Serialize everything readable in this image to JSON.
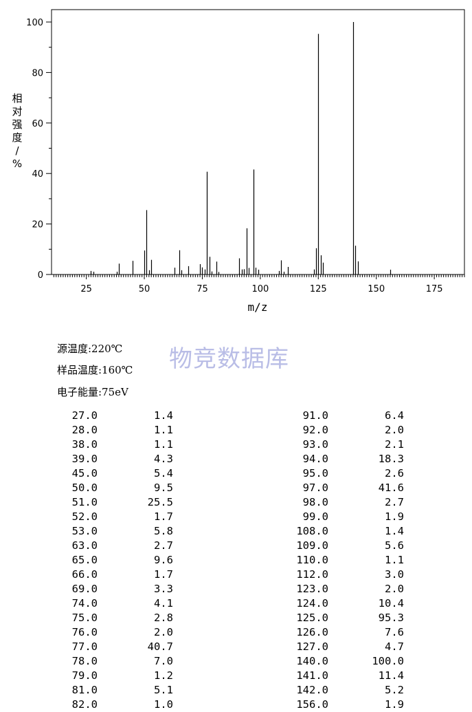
{
  "chart_data": {
    "type": "bar",
    "xlabel": "m/z",
    "ylabel": "相对强度/%",
    "xlim": [
      10,
      188
    ],
    "ylim": [
      0,
      100
    ],
    "x_ticks": [
      "25",
      "50",
      "75",
      "100",
      "125",
      "150",
      "175"
    ],
    "y_ticks": [
      "0",
      "20",
      "40",
      "60",
      "80",
      "100"
    ],
    "points": [
      {
        "x": 27,
        "y": 1.4
      },
      {
        "x": 28,
        "y": 1.1
      },
      {
        "x": 38,
        "y": 1.1
      },
      {
        "x": 39,
        "y": 4.3
      },
      {
        "x": 45,
        "y": 5.4
      },
      {
        "x": 50,
        "y": 9.5
      },
      {
        "x": 51,
        "y": 25.5
      },
      {
        "x": 52,
        "y": 1.7
      },
      {
        "x": 53,
        "y": 5.8
      },
      {
        "x": 63,
        "y": 2.7
      },
      {
        "x": 65,
        "y": 9.6
      },
      {
        "x": 66,
        "y": 1.7
      },
      {
        "x": 69,
        "y": 3.3
      },
      {
        "x": 74,
        "y": 4.1
      },
      {
        "x": 75,
        "y": 2.8
      },
      {
        "x": 76,
        "y": 2.0
      },
      {
        "x": 77,
        "y": 40.7
      },
      {
        "x": 78,
        "y": 7.0
      },
      {
        "x": 79,
        "y": 1.2
      },
      {
        "x": 81,
        "y": 5.1
      },
      {
        "x": 82,
        "y": 1.0
      },
      {
        "x": 91,
        "y": 6.4
      },
      {
        "x": 92,
        "y": 2.0
      },
      {
        "x": 93,
        "y": 2.1
      },
      {
        "x": 94,
        "y": 18.3
      },
      {
        "x": 95,
        "y": 2.6
      },
      {
        "x": 97,
        "y": 41.6
      },
      {
        "x": 98,
        "y": 2.7
      },
      {
        "x": 99,
        "y": 1.9
      },
      {
        "x": 108,
        "y": 1.4
      },
      {
        "x": 109,
        "y": 5.6
      },
      {
        "x": 110,
        "y": 1.1
      },
      {
        "x": 112,
        "y": 3.0
      },
      {
        "x": 123,
        "y": 2.0
      },
      {
        "x": 124,
        "y": 10.4
      },
      {
        "x": 125,
        "y": 95.3
      },
      {
        "x": 126,
        "y": 7.6
      },
      {
        "x": 127,
        "y": 4.7
      },
      {
        "x": 140,
        "y": 100.0
      },
      {
        "x": 141,
        "y": 11.4
      },
      {
        "x": 142,
        "y": 5.2
      },
      {
        "x": 156,
        "y": 1.9
      }
    ]
  },
  "conditions": {
    "source_temp": "源温度:220℃",
    "sample_temp": "样品温度:160℃",
    "electron_energy": "电子能量:75eV"
  },
  "watermark": "物竞数据库",
  "peak_table": {
    "left": [
      [
        "27.0",
        "1.4"
      ],
      [
        "28.0",
        "1.1"
      ],
      [
        "38.0",
        "1.1"
      ],
      [
        "39.0",
        "4.3"
      ],
      [
        "45.0",
        "5.4"
      ],
      [
        "50.0",
        "9.5"
      ],
      [
        "51.0",
        "25.5"
      ],
      [
        "52.0",
        "1.7"
      ],
      [
        "53.0",
        "5.8"
      ],
      [
        "63.0",
        "2.7"
      ],
      [
        "65.0",
        "9.6"
      ],
      [
        "66.0",
        "1.7"
      ],
      [
        "69.0",
        "3.3"
      ],
      [
        "74.0",
        "4.1"
      ],
      [
        "75.0",
        "2.8"
      ],
      [
        "76.0",
        "2.0"
      ],
      [
        "77.0",
        "40.7"
      ],
      [
        "78.0",
        "7.0"
      ],
      [
        "79.0",
        "1.2"
      ],
      [
        "81.0",
        "5.1"
      ],
      [
        "82.0",
        "1.0"
      ]
    ],
    "right": [
      [
        "91.0",
        "6.4"
      ],
      [
        "92.0",
        "2.0"
      ],
      [
        "93.0",
        "2.1"
      ],
      [
        "94.0",
        "18.3"
      ],
      [
        "95.0",
        "2.6"
      ],
      [
        "97.0",
        "41.6"
      ],
      [
        "98.0",
        "2.7"
      ],
      [
        "99.0",
        "1.9"
      ],
      [
        "108.0",
        "1.4"
      ],
      [
        "109.0",
        "5.6"
      ],
      [
        "110.0",
        "1.1"
      ],
      [
        "112.0",
        "3.0"
      ],
      [
        "123.0",
        "2.0"
      ],
      [
        "124.0",
        "10.4"
      ],
      [
        "125.0",
        "95.3"
      ],
      [
        "126.0",
        "7.6"
      ],
      [
        "127.0",
        "4.7"
      ],
      [
        "140.0",
        "100.0"
      ],
      [
        "141.0",
        "11.4"
      ],
      [
        "142.0",
        "5.2"
      ],
      [
        "156.0",
        "1.9"
      ]
    ]
  }
}
